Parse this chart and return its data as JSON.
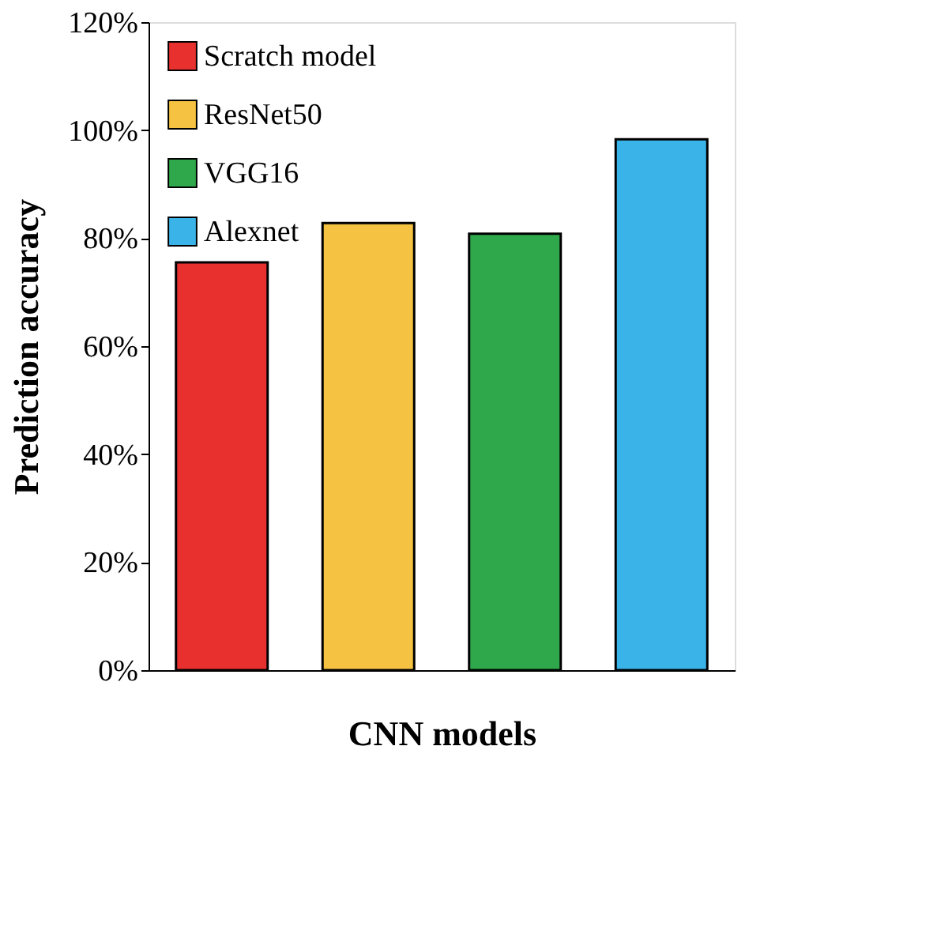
{
  "chart_data": {
    "type": "bar",
    "xlabel": "CNN models",
    "ylabel": "Prediction accuracy",
    "categories": [
      null,
      null,
      null,
      null
    ],
    "series": [
      {
        "name": "Scratch model",
        "color": "#e8312f",
        "values": [
          75.5,
          null,
          null,
          null
        ]
      },
      {
        "name": "ResNet50",
        "color": "#f5c242",
        "values": [
          null,
          82.8,
          null,
          null
        ]
      },
      {
        "name": "VGG16",
        "color": "#2ea84a",
        "values": [
          null,
          null,
          80.8,
          null
        ]
      },
      {
        "name": "Alexnet",
        "color": "#3ab4e8",
        "values": [
          null,
          null,
          null,
          98.3
        ]
      }
    ],
    "ylim": [
      0,
      120
    ],
    "yticks": [
      {
        "value": 0,
        "label": "0%"
      },
      {
        "value": 20,
        "label": "20%"
      },
      {
        "value": 40,
        "label": "40%"
      },
      {
        "value": 60,
        "label": "60%"
      },
      {
        "value": 80,
        "label": "80%"
      },
      {
        "value": 100,
        "label": "100%"
      },
      {
        "value": 120,
        "label": "120%"
      }
    ],
    "tick_labels": "y",
    "grid": false,
    "legend": "top left"
  }
}
